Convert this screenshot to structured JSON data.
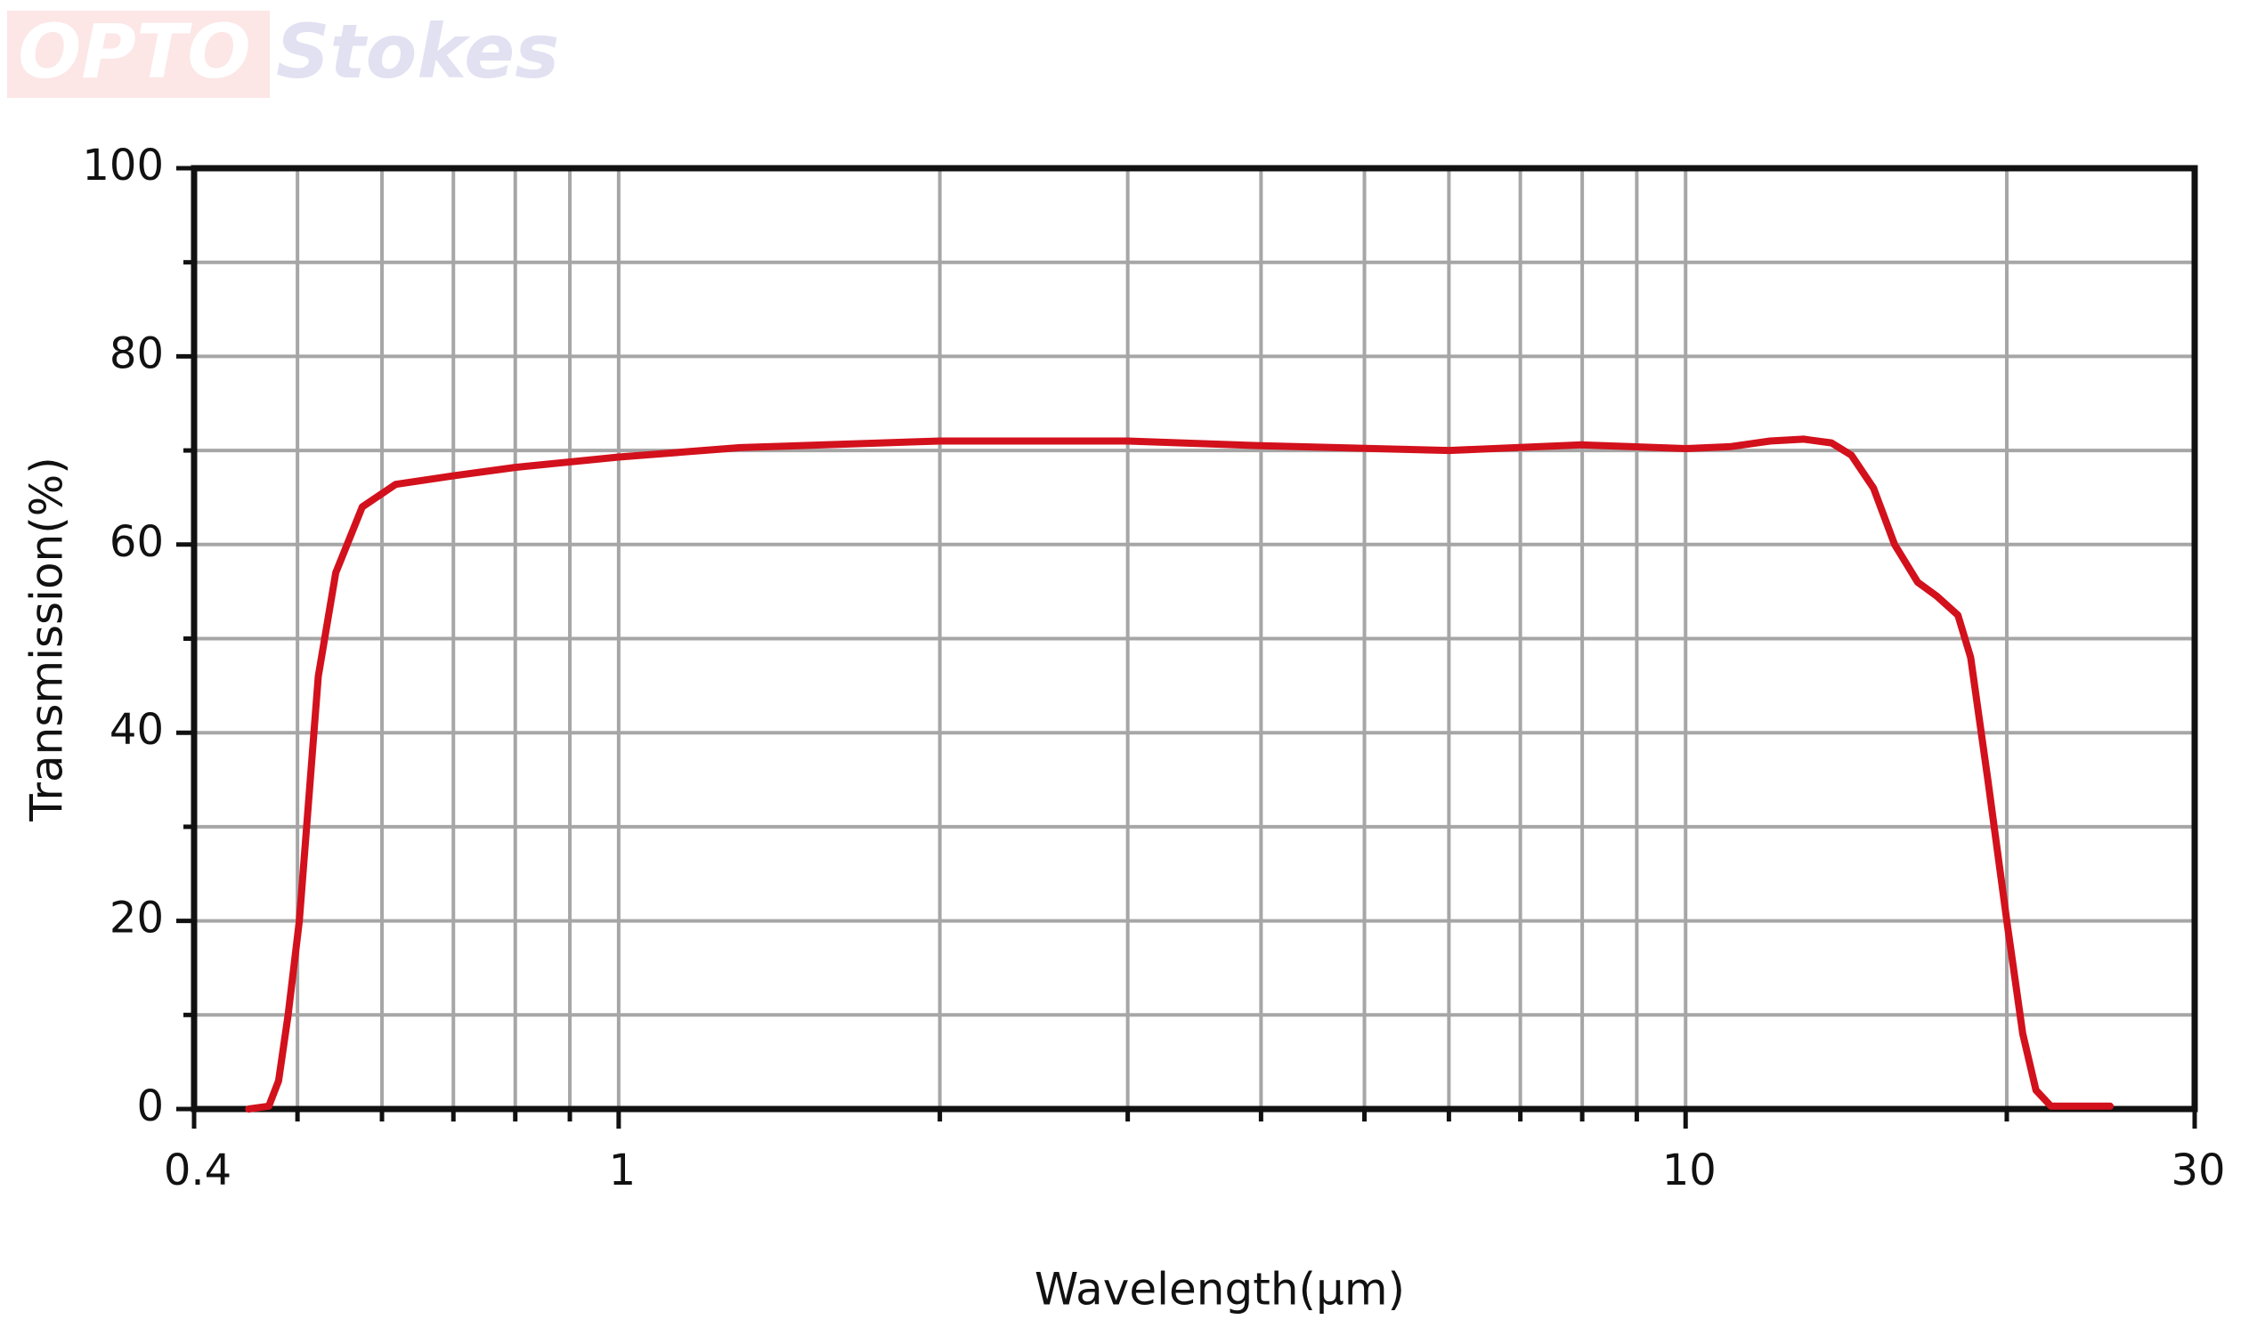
{
  "watermark": [
    "OPTO",
    "Stokes"
  ],
  "chart_data": {
    "type": "line",
    "x_label": "Wavelength(μm)",
    "y_label": "Transmission(%)",
    "log_x": true,
    "grid": true,
    "color": "#d2111c",
    "xlim": [
      0.4,
      30
    ],
    "xticks": [
      0.4,
      1,
      10,
      30
    ],
    "xminorticks": [
      0.5,
      0.6,
      0.7,
      0.8,
      0.9,
      2,
      3,
      4,
      5,
      6,
      7,
      8,
      9,
      20
    ],
    "ylim": [
      0,
      100
    ],
    "yticks": [
      0,
      20,
      40,
      60,
      80,
      100
    ],
    "yminorticks": [
      10,
      30,
      50,
      70,
      90
    ],
    "x": [
      0.45,
      0.47,
      0.48,
      0.49,
      0.502,
      0.523,
      0.543,
      0.575,
      0.618,
      0.7,
      0.8,
      1,
      1.3,
      2,
      3,
      4,
      6,
      8,
      10,
      11,
      12,
      12.9,
      13.7,
      14.3,
      15,
      15.7,
      16.5,
      17.2,
      18,
      18.5,
      19.2,
      20,
      20.7,
      21.3,
      22,
      23,
      25
    ],
    "values": [
      0,
      0.3,
      3,
      10,
      20,
      46,
      57,
      64,
      66.4,
      67.3,
      68.2,
      69.3,
      70.3,
      71,
      71,
      70.5,
      70,
      70.6,
      70.2,
      70.4,
      71,
      71.2,
      70.8,
      69.5,
      66,
      60,
      56,
      54.5,
      52.5,
      48,
      35,
      20,
      8,
      2,
      0.3,
      0.3,
      0.3
    ]
  }
}
